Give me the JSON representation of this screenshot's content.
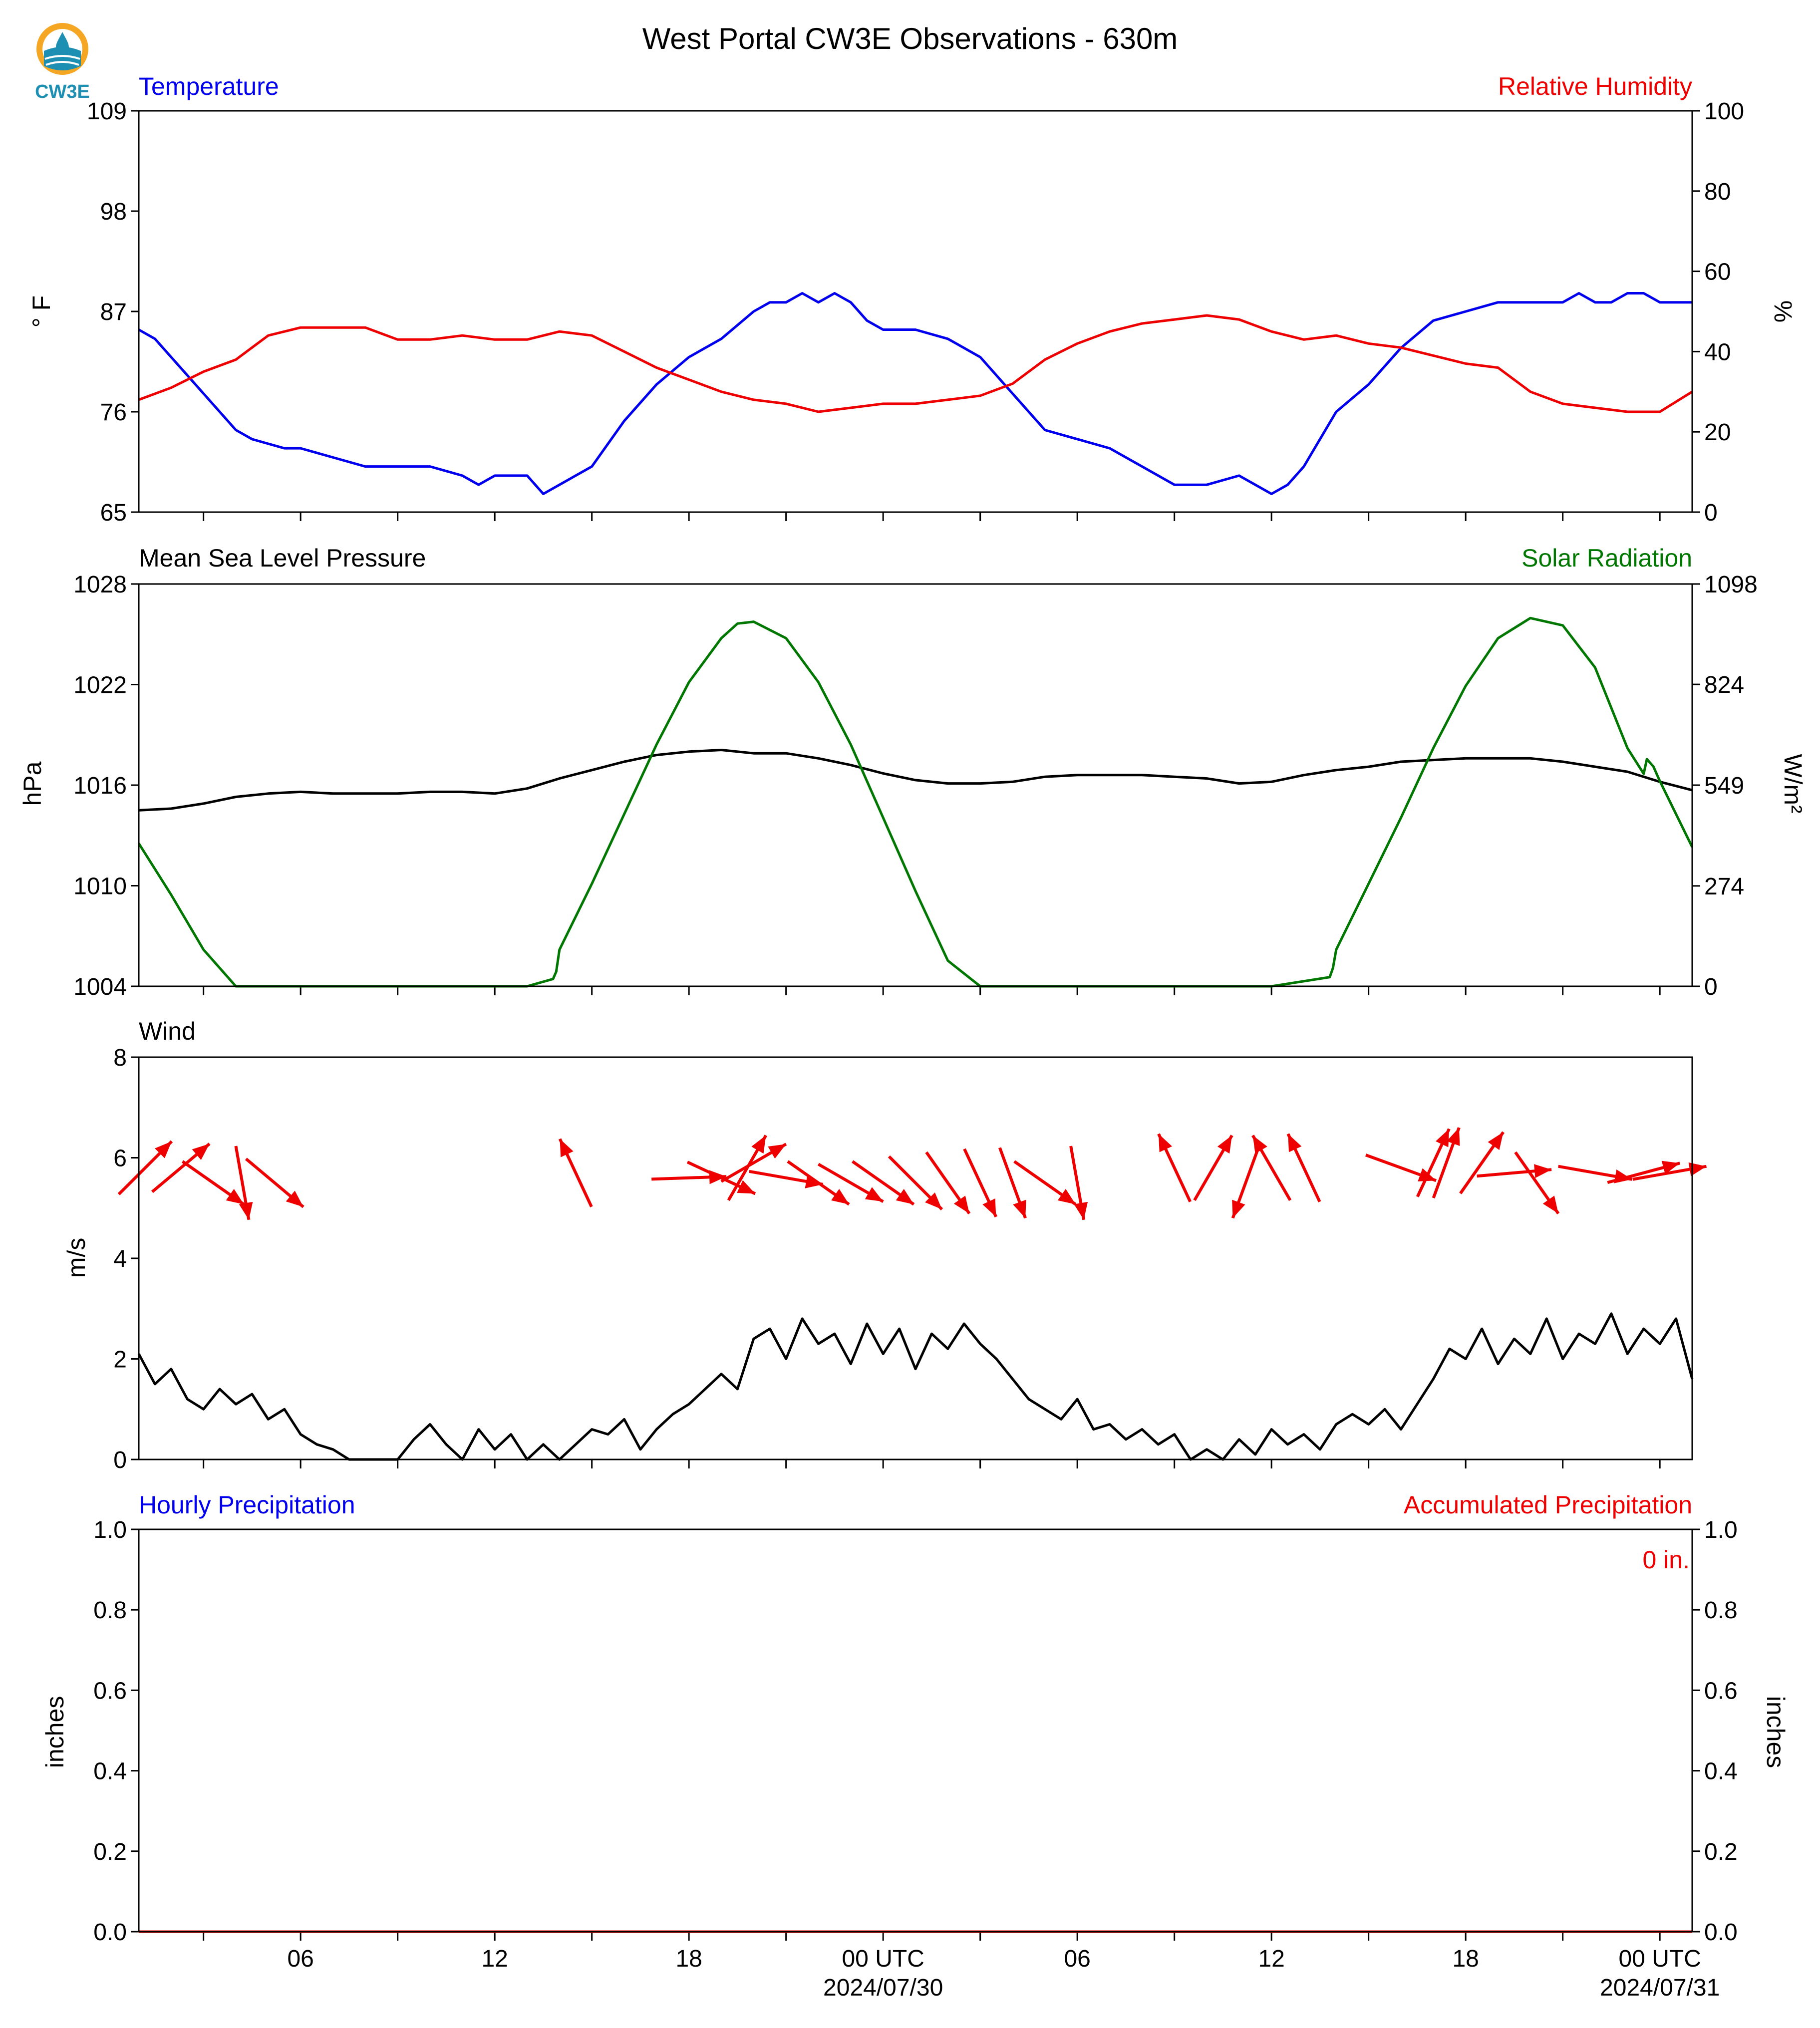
{
  "title": "West Portal CW3E Observations - 630m",
  "logo_text": "CW3E",
  "colors": {
    "blue": "#0000ee",
    "red": "#ee0000",
    "green": "#007700",
    "black": "#000000",
    "logo_orange": "#f5a623",
    "logo_blue": "#1c8fb3"
  },
  "x_axis": {
    "range_hours": [
      0,
      48
    ],
    "ticks": [
      {
        "hour": 5,
        "label": "06"
      },
      {
        "hour": 11,
        "label": "12"
      },
      {
        "hour": 17,
        "label": "18"
      },
      {
        "hour": 23,
        "label": "00 UTC",
        "sublabel": "2024/07/30"
      },
      {
        "hour": 29,
        "label": "06"
      },
      {
        "hour": 35,
        "label": "12"
      },
      {
        "hour": 41,
        "label": "18"
      },
      {
        "hour": 47,
        "label": "00 UTC",
        "sublabel": "2024/07/31"
      }
    ],
    "minor_ticks": [
      2,
      8,
      14,
      20,
      26,
      32,
      38,
      44
    ]
  },
  "panels": {
    "temp_rh": {
      "left_title": "Temperature",
      "right_title": "Relative Humidity",
      "left_ylabel": "° F",
      "right_ylabel": "%"
    },
    "pressure_solar": {
      "left_title": "Mean Sea Level Pressure",
      "right_title": "Solar Radiation",
      "left_ylabel": "hPa",
      "right_ylabel": "W/m²"
    },
    "wind": {
      "left_title": "Wind",
      "left_ylabel": "m/s"
    },
    "precip": {
      "left_title": "Hourly Precipitation",
      "right_title": "Accumulated Precipitation",
      "left_ylabel": "inches",
      "right_ylabel": "inches",
      "accum_label": "0 in."
    }
  },
  "chart_data": [
    {
      "type": "line",
      "panel": "temp_rh",
      "ylim": [
        65,
        109
      ],
      "yticks": [
        65,
        76,
        87,
        98,
        109
      ],
      "y2lim": [
        0,
        100
      ],
      "y2ticks": [
        0,
        20,
        40,
        60,
        80,
        100
      ],
      "series": [
        {
          "name": "Temperature",
          "axis": "left",
          "color": "#0000ee",
          "x": [
            0,
            0.5,
            1,
            1.5,
            2,
            2.5,
            3,
            3.5,
            4,
            4.5,
            5,
            6,
            7,
            8,
            9,
            10,
            10.5,
            11,
            12,
            12.5,
            13,
            14,
            15,
            16,
            17,
            18,
            19,
            19.5,
            20,
            20.5,
            21,
            21.5,
            22,
            22.5,
            23,
            24,
            25,
            26,
            27,
            28,
            29,
            30,
            31,
            32,
            33,
            34,
            35,
            35.5,
            36,
            36.5,
            37,
            38,
            39,
            40,
            41,
            42,
            43,
            44,
            44.5,
            45,
            45.5,
            46,
            46.5,
            47,
            48
          ],
          "values": [
            85,
            84,
            82,
            80,
            78,
            76,
            74,
            73,
            72.5,
            72,
            72,
            71,
            70,
            70,
            70,
            69,
            68,
            69,
            69,
            67,
            68,
            70,
            75,
            79,
            82,
            84,
            87,
            88,
            88,
            89,
            88,
            89,
            88,
            86,
            85,
            85,
            84,
            82,
            78,
            74,
            73,
            72,
            70,
            68,
            68,
            69,
            67,
            68,
            70,
            73,
            76,
            79,
            83,
            86,
            87,
            88,
            88,
            88,
            89,
            88,
            88,
            89,
            89,
            88,
            88
          ]
        },
        {
          "name": "Relative Humidity",
          "axis": "right",
          "color": "#ee0000",
          "x": [
            0,
            1,
            2,
            3,
            4,
            5,
            6,
            7,
            8,
            9,
            10,
            11,
            12,
            13,
            14,
            15,
            16,
            17,
            18,
            19,
            20,
            21,
            22,
            23,
            24,
            25,
            26,
            27,
            28,
            29,
            30,
            31,
            32,
            33,
            34,
            35,
            36,
            37,
            38,
            39,
            40,
            41,
            42,
            43,
            44,
            45,
            46,
            47,
            48
          ],
          "values": [
            28,
            31,
            35,
            38,
            44,
            46,
            46,
            46,
            43,
            43,
            44,
            43,
            43,
            45,
            44,
            40,
            36,
            33,
            30,
            28,
            27,
            25,
            26,
            27,
            27,
            28,
            29,
            32,
            38,
            42,
            45,
            47,
            48,
            49,
            48,
            45,
            43,
            44,
            42,
            41,
            39,
            37,
            36,
            30,
            27,
            26,
            25,
            25,
            30
          ]
        }
      ]
    },
    {
      "type": "line",
      "panel": "pressure_solar",
      "ylim": [
        1004,
        1028
      ],
      "yticks": [
        1004,
        1010,
        1016,
        1022,
        1028
      ],
      "y2lim": [
        0,
        1098
      ],
      "y2ticks": [
        0,
        274,
        549,
        824,
        1098
      ],
      "series": [
        {
          "name": "Mean Sea Level Pressure",
          "axis": "left",
          "color": "#000000",
          "x": [
            0,
            1,
            2,
            3,
            4,
            5,
            6,
            7,
            8,
            9,
            10,
            11,
            12,
            13,
            14,
            15,
            16,
            17,
            18,
            19,
            20,
            21,
            22,
            23,
            24,
            25,
            26,
            27,
            28,
            29,
            30,
            31,
            32,
            33,
            34,
            35,
            36,
            37,
            38,
            39,
            40,
            41,
            42,
            43,
            44,
            45,
            46,
            47,
            48
          ],
          "values": [
            1014.5,
            1014.6,
            1014.9,
            1015.3,
            1015.5,
            1015.6,
            1015.5,
            1015.5,
            1015.5,
            1015.6,
            1015.6,
            1015.5,
            1015.8,
            1016.4,
            1016.9,
            1017.4,
            1017.8,
            1018,
            1018.1,
            1017.9,
            1017.9,
            1017.6,
            1017.2,
            1016.7,
            1016.3,
            1016.1,
            1016.1,
            1016.2,
            1016.5,
            1016.6,
            1016.6,
            1016.6,
            1016.5,
            1016.4,
            1016.1,
            1016.2,
            1016.6,
            1016.9,
            1017.1,
            1017.4,
            1017.5,
            1017.6,
            1017.6,
            1017.6,
            1017.4,
            1017.1,
            1016.8,
            1016.2,
            1015.7
          ]
        },
        {
          "name": "Solar Radiation",
          "axis": "right",
          "color": "#007700",
          "x": [
            0,
            1,
            2,
            3,
            4,
            5,
            6,
            7,
            8,
            9,
            10,
            11,
            12,
            12.8,
            12.9,
            13,
            14,
            15,
            16,
            17,
            18,
            18.5,
            19,
            20,
            21,
            22,
            23,
            24,
            25,
            26,
            27,
            28,
            29,
            30,
            31,
            32,
            33,
            34,
            35,
            36.8,
            36.9,
            37,
            38,
            39,
            40,
            41,
            42,
            43,
            44,
            45,
            46,
            46.5,
            46.6,
            46.8,
            47,
            48
          ],
          "values": [
            390,
            250,
            100,
            0,
            0,
            0,
            0,
            0,
            0,
            0,
            0,
            0,
            0,
            20,
            40,
            100,
            280,
            470,
            660,
            830,
            950,
            990,
            995,
            950,
            830,
            660,
            460,
            260,
            70,
            0,
            0,
            0,
            0,
            0,
            0,
            0,
            0,
            0,
            0,
            25,
            50,
            100,
            280,
            460,
            650,
            820,
            950,
            1005,
            985,
            870,
            650,
            580,
            620,
            600,
            560,
            380
          ]
        }
      ]
    },
    {
      "type": "line",
      "panel": "wind",
      "ylim": [
        0,
        8
      ],
      "yticks": [
        0,
        2,
        4,
        6,
        8
      ],
      "series": [
        {
          "name": "Wind speed",
          "axis": "left",
          "color": "#000000",
          "x": [
            0,
            0.5,
            1,
            1.5,
            2,
            2.5,
            3,
            3.5,
            4,
            4.5,
            5,
            5.5,
            6,
            6.5,
            7,
            7.5,
            8,
            8.5,
            9,
            9.5,
            10,
            10.5,
            11,
            11.5,
            12,
            12.5,
            13,
            13.5,
            14,
            14.5,
            15,
            15.5,
            16,
            16.5,
            17,
            17.5,
            18,
            18.5,
            19,
            19.5,
            20,
            20.5,
            21,
            21.5,
            22,
            22.5,
            23,
            23.5,
            24,
            24.5,
            25,
            25.5,
            26,
            26.5,
            27,
            27.5,
            28,
            28.5,
            29,
            29.5,
            30,
            30.5,
            31,
            31.5,
            32,
            32.5,
            33,
            33.5,
            34,
            34.5,
            35,
            35.5,
            36,
            36.5,
            37,
            37.5,
            38,
            38.5,
            39,
            39.5,
            40,
            40.5,
            41,
            41.5,
            42,
            42.5,
            43,
            43.5,
            44,
            44.5,
            45,
            45.5,
            46,
            46.5,
            47,
            47.5,
            48
          ],
          "values": [
            2.1,
            1.5,
            1.8,
            1.2,
            1.0,
            1.4,
            1.1,
            1.3,
            0.8,
            1.0,
            0.5,
            0.3,
            0.2,
            0,
            0,
            0,
            0,
            0.4,
            0.7,
            0.3,
            0,
            0.6,
            0.2,
            0.5,
            0,
            0.3,
            0,
            0.3,
            0.6,
            0.5,
            0.8,
            0.2,
            0.6,
            0.9,
            1.1,
            1.4,
            1.7,
            1.4,
            2.4,
            2.6,
            2.0,
            2.8,
            2.3,
            2.5,
            1.9,
            2.7,
            2.1,
            2.6,
            1.8,
            2.5,
            2.2,
            2.7,
            2.3,
            2.0,
            1.6,
            1.2,
            1.0,
            0.8,
            1.2,
            0.6,
            0.7,
            0.4,
            0.6,
            0.3,
            0.5,
            0,
            0.2,
            0,
            0.4,
            0.1,
            0.6,
            0.3,
            0.5,
            0.2,
            0.7,
            0.9,
            0.7,
            1.0,
            0.6,
            1.1,
            1.6,
            2.2,
            2.0,
            2.6,
            1.9,
            2.4,
            2.1,
            2.8,
            2.0,
            2.5,
            2.3,
            2.9,
            2.1,
            2.6,
            2.3,
            2.8,
            1.6
          ]
        }
      ],
      "wind_arrows": [
        {
          "hour": 0.2,
          "speed": 5.8,
          "dir_to": 45
        },
        {
          "hour": 1.3,
          "speed": 5.8,
          "dir_to": 50
        },
        {
          "hour": 2.3,
          "speed": 5.5,
          "dir_to": 125
        },
        {
          "hour": 3.2,
          "speed": 5.5,
          "dir_to": 170
        },
        {
          "hour": 4.2,
          "speed": 5.5,
          "dir_to": 130
        },
        {
          "hour": 13.5,
          "speed": 5.7,
          "dir_to": 335
        },
        {
          "hour": 17.0,
          "speed": 5.6,
          "dir_to": 88
        },
        {
          "hour": 18.0,
          "speed": 5.6,
          "dir_to": 115
        },
        {
          "hour": 18.8,
          "speed": 5.8,
          "dir_to": 30
        },
        {
          "hour": 19.0,
          "speed": 5.9,
          "dir_to": 60
        },
        {
          "hour": 20.0,
          "speed": 5.6,
          "dir_to": 100
        },
        {
          "hour": 21.0,
          "speed": 5.5,
          "dir_to": 125
        },
        {
          "hour": 22.0,
          "speed": 5.5,
          "dir_to": 120
        },
        {
          "hour": 23.0,
          "speed": 5.5,
          "dir_to": 125
        },
        {
          "hour": 24.0,
          "speed": 5.5,
          "dir_to": 135
        },
        {
          "hour": 25.0,
          "speed": 5.5,
          "dir_to": 145
        },
        {
          "hour": 26.0,
          "speed": 5.5,
          "dir_to": 155
        },
        {
          "hour": 27.0,
          "speed": 5.5,
          "dir_to": 160
        },
        {
          "hour": 28.0,
          "speed": 5.5,
          "dir_to": 125
        },
        {
          "hour": 29.0,
          "speed": 5.5,
          "dir_to": 170
        },
        {
          "hour": 32.0,
          "speed": 5.8,
          "dir_to": 335
        },
        {
          "hour": 33.2,
          "speed": 5.8,
          "dir_to": 30
        },
        {
          "hour": 34.2,
          "speed": 5.5,
          "dir_to": 200
        },
        {
          "hour": 35.0,
          "speed": 5.8,
          "dir_to": 330
        },
        {
          "hour": 36.0,
          "speed": 5.8,
          "dir_to": 335
        },
        {
          "hour": 39.0,
          "speed": 5.8,
          "dir_to": 110
        },
        {
          "hour": 40.0,
          "speed": 5.9,
          "dir_to": 25
        },
        {
          "hour": 40.4,
          "speed": 5.9,
          "dir_to": 20
        },
        {
          "hour": 41.5,
          "speed": 5.9,
          "dir_to": 35
        },
        {
          "hour": 42.5,
          "speed": 5.7,
          "dir_to": 85
        },
        {
          "hour": 43.2,
          "speed": 5.5,
          "dir_to": 145
        },
        {
          "hour": 45.0,
          "speed": 5.7,
          "dir_to": 100
        },
        {
          "hour": 46.5,
          "speed": 5.7,
          "dir_to": 75
        },
        {
          "hour": 47.3,
          "speed": 5.7,
          "dir_to": 80
        }
      ]
    },
    {
      "type": "line",
      "panel": "precip",
      "ylim": [
        0,
        1.0
      ],
      "yticks": [
        0.0,
        0.2,
        0.4,
        0.6,
        0.8,
        1.0
      ],
      "y2lim": [
        0,
        1.0
      ],
      "y2ticks": [
        0.0,
        0.2,
        0.4,
        0.6,
        0.8,
        1.0
      ],
      "series": [
        {
          "name": "Hourly Precipitation",
          "axis": "left",
          "color": "#0000ee",
          "x": [
            0,
            48
          ],
          "values": [
            0,
            0
          ]
        },
        {
          "name": "Accumulated Precipitation",
          "axis": "right",
          "color": "#ee0000",
          "x": [
            0,
            48
          ],
          "values": [
            0,
            0
          ]
        }
      ]
    }
  ]
}
